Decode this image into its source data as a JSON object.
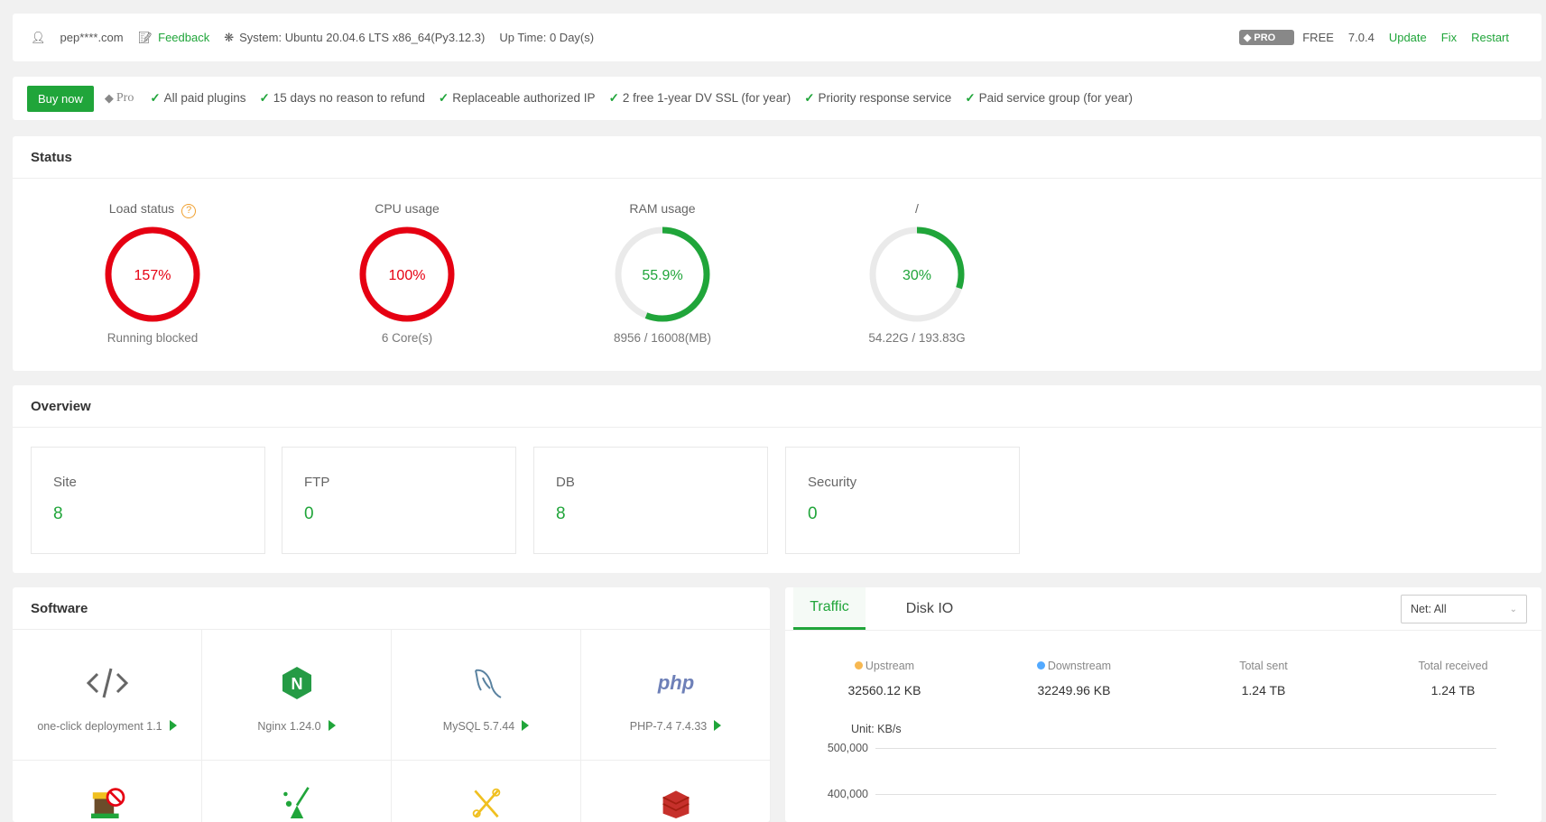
{
  "topbar": {
    "user": "pep****.com",
    "feedback": "Feedback",
    "system": "System: Ubuntu 20.04.6 LTS x86_64(Py3.12.3)",
    "uptime": "Up Time: 0 Day(s)",
    "pro_badge": "PRO",
    "plan": "FREE",
    "version": "7.0.4",
    "update": "Update",
    "fix": "Fix",
    "restart": "Restart"
  },
  "promo": {
    "buy": "Buy now",
    "pro": "Pro",
    "features": [
      "All paid plugins",
      "15 days no reason to refund",
      "Replaceable authorized IP",
      "2 free 1-year DV SSL (for year)",
      "Priority response service",
      "Paid service group (for year)"
    ]
  },
  "status": {
    "title": "Status",
    "gauges": [
      {
        "title": "Load status",
        "value": "157%",
        "percent": 157,
        "sub": "Running blocked",
        "color": "#e60012",
        "help": true
      },
      {
        "title": "CPU usage",
        "value": "100%",
        "percent": 100,
        "sub": "6 Core(s)",
        "color": "#e60012"
      },
      {
        "title": "RAM usage",
        "value": "55.9%",
        "percent": 55.9,
        "sub": "8956 / 16008(MB)",
        "color": "#20a53a"
      },
      {
        "title": "/",
        "value": "30%",
        "percent": 30,
        "sub": "54.22G / 193.83G",
        "color": "#20a53a"
      }
    ]
  },
  "overview": {
    "title": "Overview",
    "cards": [
      {
        "label": "Site",
        "value": "8"
      },
      {
        "label": "FTP",
        "value": "0"
      },
      {
        "label": "DB",
        "value": "8"
      },
      {
        "label": "Security",
        "value": "0"
      }
    ]
  },
  "software": {
    "title": "Software",
    "items": [
      {
        "name": "one-click deployment 1.1",
        "icon": "code-icon"
      },
      {
        "name": "Nginx 1.24.0",
        "icon": "nginx-icon"
      },
      {
        "name": "MySQL 5.7.44",
        "icon": "mysql-dolphin-icon"
      },
      {
        "name": "PHP-7.4 7.4.33",
        "icon": "php-icon"
      },
      {
        "name": "",
        "icon": "site-block-icon"
      },
      {
        "name": "",
        "icon": "broom-cleanup-icon"
      },
      {
        "name": "",
        "icon": "tools-icon"
      },
      {
        "name": "",
        "icon": "redis-icon"
      }
    ]
  },
  "traffic": {
    "tabs": [
      "Traffic",
      "Disk IO"
    ],
    "active_tab": 0,
    "select": "Net: All",
    "stats": [
      {
        "label": "Upstream",
        "value": "32560.12 KB",
        "dot": "#f7b851"
      },
      {
        "label": "Downstream",
        "value": "32249.96 KB",
        "dot": "#52a9ff"
      },
      {
        "label": "Total sent",
        "value": "1.24 TB"
      },
      {
        "label": "Total received",
        "value": "1.24 TB"
      }
    ],
    "unit": "Unit: KB/s",
    "y_ticks": [
      "500,000",
      "400,000"
    ]
  }
}
